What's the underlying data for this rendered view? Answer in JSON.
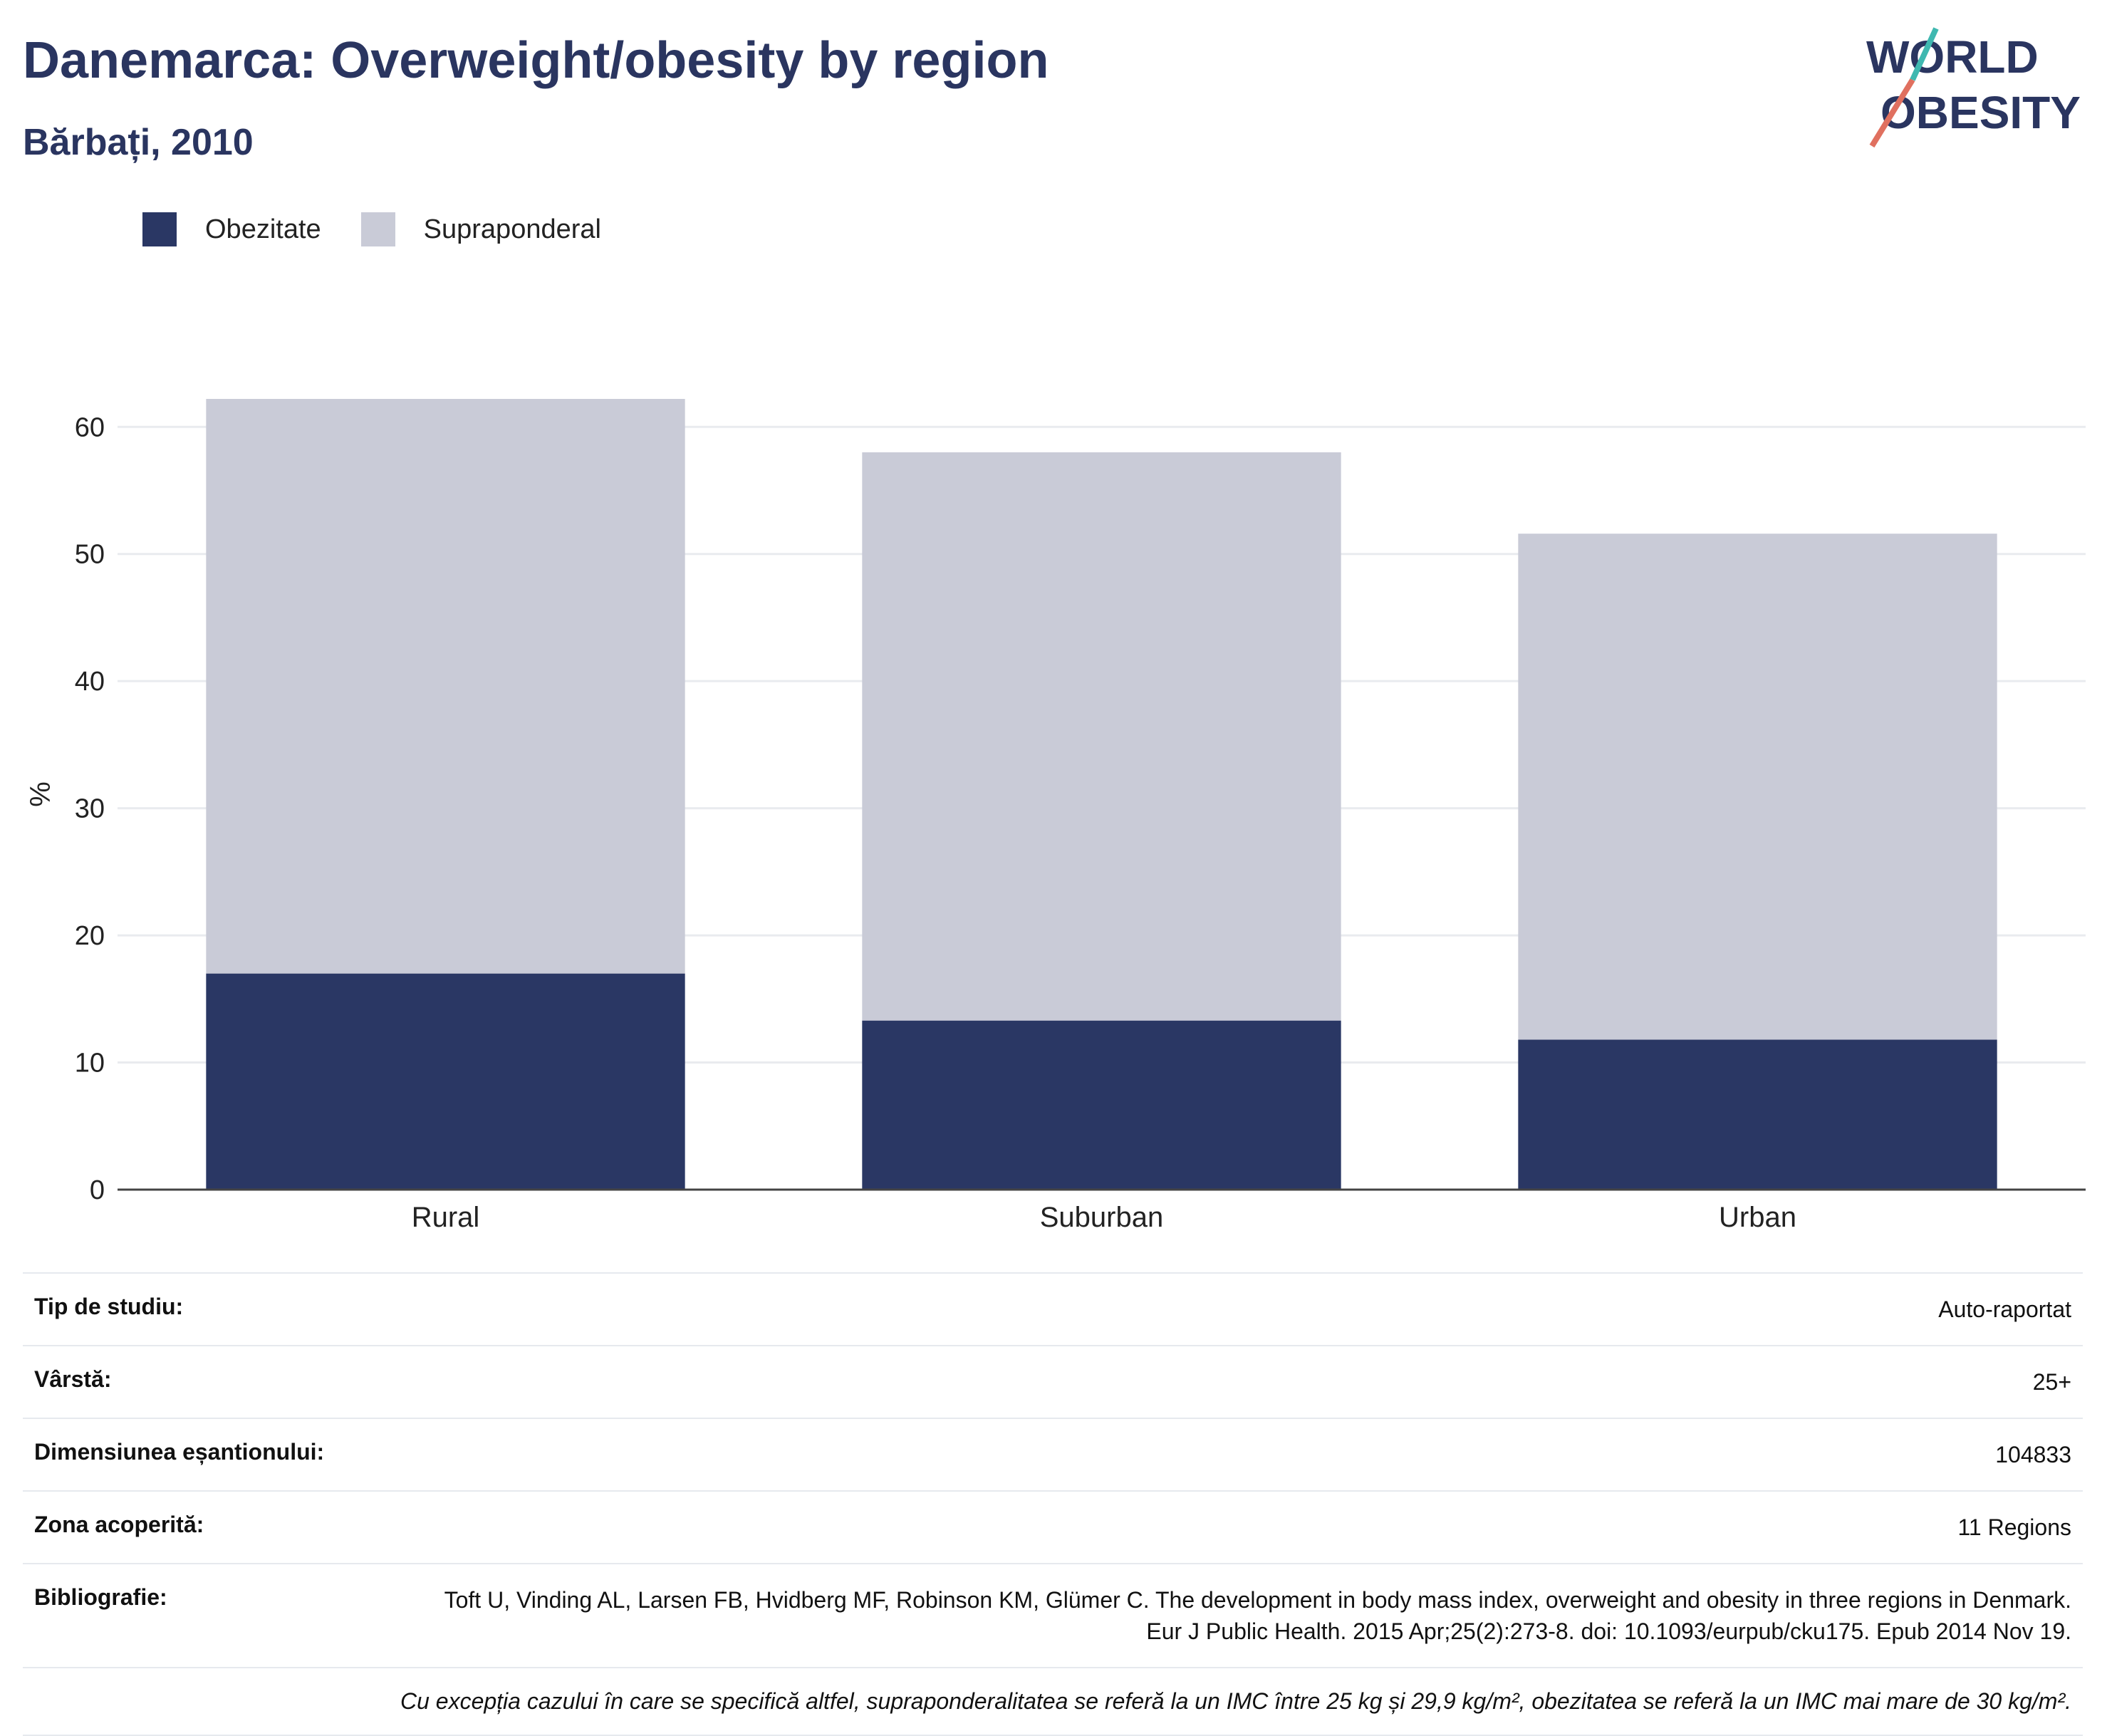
{
  "header": {
    "title": "Danemarca: Overweight/obesity by region",
    "subtitle": "Bărbați, 2010",
    "logo_line1": "WORLD",
    "logo_line2": "OBESITY"
  },
  "legend": {
    "items": [
      {
        "label": "Obezitate",
        "color": "#2a3764"
      },
      {
        "label": "Supraponderal",
        "color": "#c9cbd7"
      }
    ]
  },
  "chart_data": {
    "type": "bar",
    "stacked": true,
    "categories": [
      "Rural",
      "Suburban",
      "Urban"
    ],
    "series": [
      {
        "name": "Obezitate",
        "color": "#2a3764",
        "values": [
          17.0,
          13.3,
          11.8
        ]
      },
      {
        "name": "Supraponderal",
        "color": "#c9cbd7",
        "values": [
          45.2,
          44.7,
          39.8
        ]
      }
    ],
    "ylabel": "%",
    "xlabel": "",
    "ylim": [
      0,
      62.2
    ],
    "yticks": [
      0,
      10,
      20,
      30,
      40,
      50,
      60
    ],
    "grid": true,
    "legend_position": "top-left"
  },
  "info": {
    "rows": [
      {
        "key": "Tip de studiu:",
        "value": "Auto-raportat"
      },
      {
        "key": "Vârstă:",
        "value": "25+"
      },
      {
        "key": "Dimensiunea eșantionului:",
        "value": "104833"
      },
      {
        "key": "Zona acoperită:",
        "value": "11 Regions"
      },
      {
        "key": "Bibliografie:",
        "value": "Toft U, Vinding AL, Larsen FB, Hvidberg MF, Robinson KM, Glümer C. The development in body mass index, overweight and obesity in three regions in Denmark. Eur J Public Health. 2015 Apr;25(2):273-8. doi: 10.1093/eurpub/cku175. Epub 2014 Nov 19."
      }
    ],
    "note": "Cu excepția cazului în care se specifică altfel, supraponderalitatea se referă la un IMC între 25 kg și 29,9 kg/m², obezitatea se referă la un IMC mai mare de 30 kg/m²."
  }
}
